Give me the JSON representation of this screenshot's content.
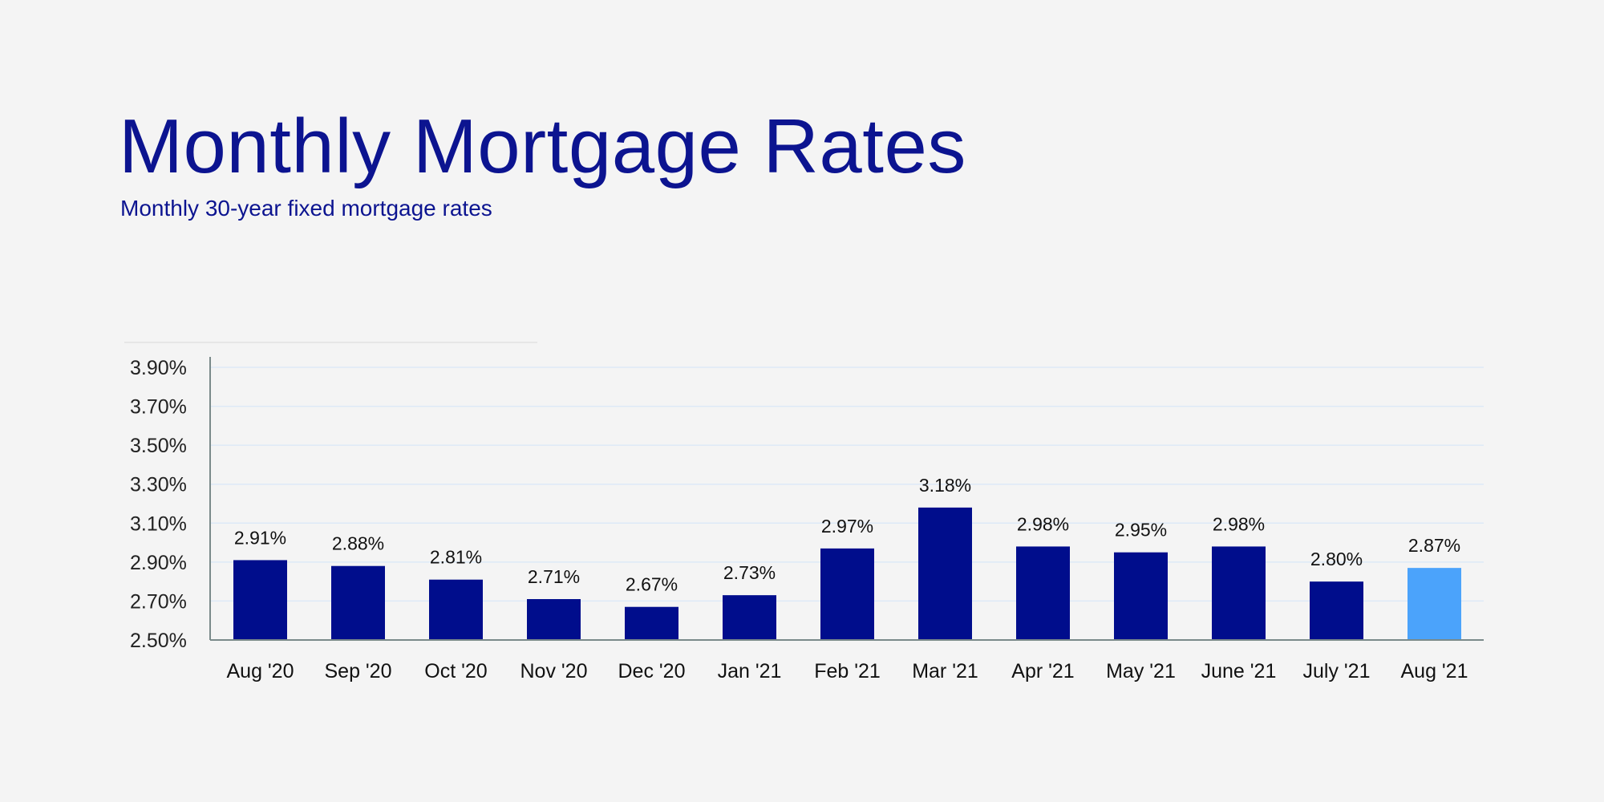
{
  "title": "Monthly Mortgage Rates",
  "subtitle": "Monthly 30-year fixed mortgage rates",
  "chart_data": {
    "type": "bar",
    "categories": [
      "Aug '20",
      "Sep '20",
      "Oct '20",
      "Nov '20",
      "Dec '20",
      "Jan '21",
      "Feb '21",
      "Mar '21",
      "Apr '21",
      "May '21",
      "June '21",
      "July '21",
      "Aug '21"
    ],
    "values": [
      2.91,
      2.88,
      2.81,
      2.71,
      2.67,
      2.73,
      2.97,
      3.18,
      2.98,
      2.95,
      2.98,
      2.8,
      2.87
    ],
    "data_labels": [
      "2.91%",
      "2.88%",
      "2.81%",
      "2.71%",
      "2.67%",
      "2.73%",
      "2.97%",
      "3.18%",
      "2.98%",
      "2.95%",
      "2.98%",
      "2.80%",
      "2.87%"
    ],
    "yticks": [
      2.5,
      2.7,
      2.9,
      3.1,
      3.3,
      3.5,
      3.7,
      3.9
    ],
    "ytick_labels": [
      "2.50%",
      "2.70%",
      "2.90%",
      "3.10%",
      "3.30%",
      "3.50%",
      "3.70%",
      "3.90%"
    ],
    "ylim": [
      2.5,
      3.9
    ],
    "grid": true,
    "colors": {
      "bar": "#000d8c",
      "highlight": "#4ba3fb",
      "highlight_index": 12,
      "grid": "#dde9f7",
      "axis": "#7a8a8a"
    }
  }
}
